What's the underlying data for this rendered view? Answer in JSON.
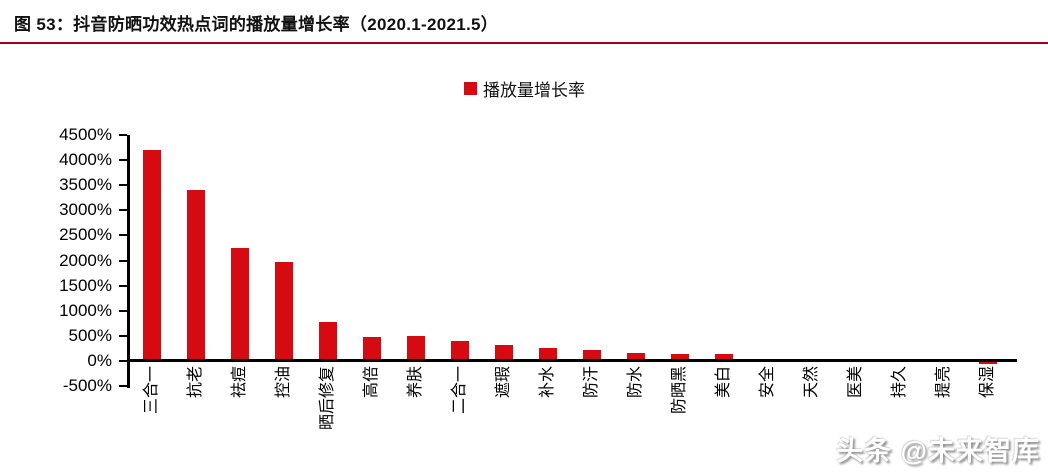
{
  "header": {
    "title": "图 53：抖音防晒功效热点词的播放量增长率（2020.1-2021.5）"
  },
  "legend": {
    "label": "播放量增长率"
  },
  "watermark": {
    "text": "头条 @未来智库"
  },
  "colors": {
    "bar": "#d60b12",
    "title_underline": "#a00020",
    "axis": "#000000",
    "legend_swatch": "#d60b12"
  },
  "chart_data": {
    "type": "bar",
    "title": "图 53：抖音防晒功效热点词的播放量增长率（2020.1-2021.5）",
    "legend_entries": [
      "播放量增长率"
    ],
    "legend_position": "top-center",
    "categories": [
      "三合一",
      "抗老",
      "祛痘",
      "控油",
      "晒后修复",
      "高倍",
      "养肤",
      "二合一",
      "遮瑕",
      "补水",
      "防汗",
      "防水",
      "防晒黑",
      "美白",
      "安全",
      "天然",
      "医美",
      "持久",
      "提亮",
      "保湿"
    ],
    "values": [
      4200,
      3400,
      2250,
      1980,
      780,
      480,
      490,
      400,
      310,
      260,
      220,
      150,
      140,
      130,
      30,
      30,
      0,
      0,
      0,
      -60
    ],
    "unit": "%",
    "xlabel": "",
    "ylabel": "",
    "ylim": [
      -500,
      4500
    ],
    "ytick_step": 500,
    "ytick_labels": [
      "4500%",
      "4000%",
      "3500%",
      "3000%",
      "2500%",
      "2000%",
      "1500%",
      "1000%",
      "500%",
      "0%",
      "-500%"
    ],
    "grid": false
  }
}
